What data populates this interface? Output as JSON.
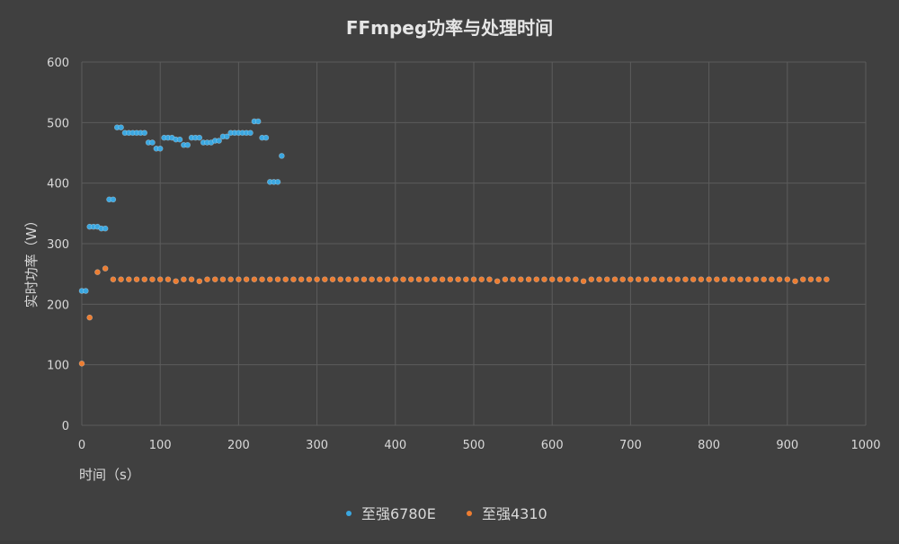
{
  "chart_data": {
    "type": "scatter",
    "title": "FFmpeg功率与处理时间",
    "xlabel": "时间（s）",
    "ylabel": "实时功率（W）",
    "xlim": [
      0,
      1000
    ],
    "ylim": [
      0,
      600
    ],
    "x_ticks": [
      0,
      100,
      200,
      300,
      400,
      500,
      600,
      700,
      800,
      900,
      1000
    ],
    "y_ticks": [
      0,
      100,
      200,
      300,
      400,
      500,
      600
    ],
    "grid": true,
    "legend_position": "bottom",
    "series": [
      {
        "name": "至强6780E",
        "color": "#3ba7e0",
        "points": [
          [
            0,
            222
          ],
          [
            5,
            222
          ],
          [
            10,
            328
          ],
          [
            15,
            328
          ],
          [
            20,
            328
          ],
          [
            25,
            325
          ],
          [
            30,
            325
          ],
          [
            35,
            373
          ],
          [
            40,
            373
          ],
          [
            45,
            492
          ],
          [
            50,
            492
          ],
          [
            55,
            483
          ],
          [
            60,
            483
          ],
          [
            65,
            483
          ],
          [
            70,
            483
          ],
          [
            75,
            483
          ],
          [
            80,
            483
          ],
          [
            85,
            467
          ],
          [
            90,
            467
          ],
          [
            95,
            457
          ],
          [
            100,
            457
          ],
          [
            105,
            475
          ],
          [
            110,
            475
          ],
          [
            115,
            475
          ],
          [
            120,
            472
          ],
          [
            125,
            472
          ],
          [
            130,
            463
          ],
          [
            135,
            463
          ],
          [
            140,
            475
          ],
          [
            145,
            475
          ],
          [
            150,
            475
          ],
          [
            155,
            467
          ],
          [
            160,
            467
          ],
          [
            165,
            467
          ],
          [
            170,
            470
          ],
          [
            175,
            470
          ],
          [
            180,
            477
          ],
          [
            185,
            477
          ],
          [
            190,
            483
          ],
          [
            195,
            483
          ],
          [
            200,
            483
          ],
          [
            205,
            483
          ],
          [
            210,
            483
          ],
          [
            215,
            483
          ],
          [
            220,
            502
          ],
          [
            225,
            502
          ],
          [
            230,
            475
          ],
          [
            235,
            475
          ],
          [
            240,
            402
          ],
          [
            245,
            402
          ],
          [
            250,
            402
          ],
          [
            255,
            445
          ]
        ]
      },
      {
        "name": "至强4310",
        "color": "#ed7d31",
        "points": [
          [
            0,
            102
          ],
          [
            10,
            178
          ],
          [
            20,
            253
          ],
          [
            30,
            259
          ],
          [
            40,
            241
          ],
          [
            50,
            241
          ],
          [
            60,
            241
          ],
          [
            70,
            241
          ],
          [
            80,
            241
          ],
          [
            90,
            241
          ],
          [
            100,
            241
          ],
          [
            110,
            241
          ],
          [
            120,
            238
          ],
          [
            130,
            241
          ],
          [
            140,
            241
          ],
          [
            150,
            238
          ],
          [
            160,
            241
          ],
          [
            170,
            241
          ],
          [
            180,
            241
          ],
          [
            190,
            241
          ],
          [
            200,
            241
          ],
          [
            210,
            241
          ],
          [
            220,
            241
          ],
          [
            230,
            241
          ],
          [
            240,
            241
          ],
          [
            250,
            241
          ],
          [
            260,
            241
          ],
          [
            270,
            241
          ],
          [
            280,
            241
          ],
          [
            290,
            241
          ],
          [
            300,
            241
          ],
          [
            310,
            241
          ],
          [
            320,
            241
          ],
          [
            330,
            241
          ],
          [
            340,
            241
          ],
          [
            350,
            241
          ],
          [
            360,
            241
          ],
          [
            370,
            241
          ],
          [
            380,
            241
          ],
          [
            390,
            241
          ],
          [
            400,
            241
          ],
          [
            410,
            241
          ],
          [
            420,
            241
          ],
          [
            430,
            241
          ],
          [
            440,
            241
          ],
          [
            450,
            241
          ],
          [
            460,
            241
          ],
          [
            470,
            241
          ],
          [
            480,
            241
          ],
          [
            490,
            241
          ],
          [
            500,
            241
          ],
          [
            510,
            241
          ],
          [
            520,
            241
          ],
          [
            530,
            238
          ],
          [
            540,
            241
          ],
          [
            550,
            241
          ],
          [
            560,
            241
          ],
          [
            570,
            241
          ],
          [
            580,
            241
          ],
          [
            590,
            241
          ],
          [
            600,
            241
          ],
          [
            610,
            241
          ],
          [
            620,
            241
          ],
          [
            630,
            241
          ],
          [
            640,
            238
          ],
          [
            650,
            241
          ],
          [
            660,
            241
          ],
          [
            670,
            241
          ],
          [
            680,
            241
          ],
          [
            690,
            241
          ],
          [
            700,
            241
          ],
          [
            710,
            241
          ],
          [
            720,
            241
          ],
          [
            730,
            241
          ],
          [
            740,
            241
          ],
          [
            750,
            241
          ],
          [
            760,
            241
          ],
          [
            770,
            241
          ],
          [
            780,
            241
          ],
          [
            790,
            241
          ],
          [
            800,
            241
          ],
          [
            810,
            241
          ],
          [
            820,
            241
          ],
          [
            830,
            241
          ],
          [
            840,
            241
          ],
          [
            850,
            241
          ],
          [
            860,
            241
          ],
          [
            870,
            241
          ],
          [
            880,
            241
          ],
          [
            890,
            241
          ],
          [
            900,
            241
          ],
          [
            910,
            238
          ],
          [
            920,
            241
          ],
          [
            930,
            241
          ],
          [
            940,
            241
          ],
          [
            950,
            241
          ]
        ]
      }
    ]
  }
}
